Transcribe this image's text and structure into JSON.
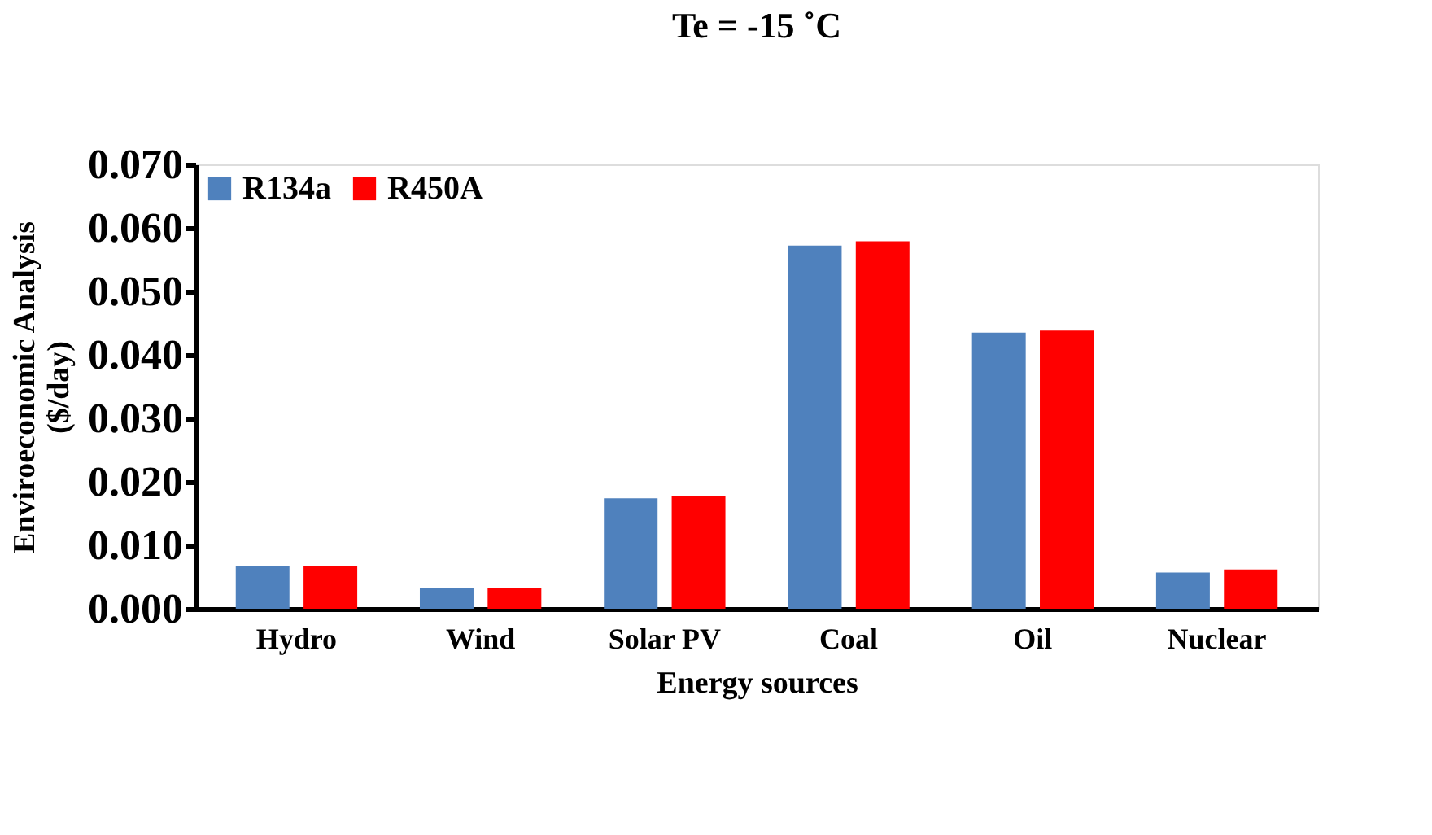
{
  "chart_data": {
    "type": "bar",
    "title": "Te = -15 ˚C",
    "xlabel": "Energy sources",
    "ylabel": "Enviroeconomic Analysis\n($/day)",
    "categories": [
      "Hydro",
      "Wind",
      "Solar PV",
      "Coal",
      "Oil",
      "Nuclear"
    ],
    "series": [
      {
        "name": "R134a",
        "color": "#4f81bd",
        "values": [
          0.0068,
          0.0033,
          0.0174,
          0.0572,
          0.0435,
          0.0057
        ]
      },
      {
        "name": "R450A",
        "color": "#ff0000",
        "values": [
          0.0068,
          0.0033,
          0.0178,
          0.0579,
          0.0438,
          0.0062
        ]
      }
    ],
    "ylim": [
      0,
      0.07
    ],
    "yticks": [
      {
        "value": 0,
        "label": "0.000"
      },
      {
        "value": 0.01,
        "label": "0.010"
      },
      {
        "value": 0.02,
        "label": "0.020"
      },
      {
        "value": 0.03,
        "label": "0.030"
      },
      {
        "value": 0.04,
        "label": "0.040"
      },
      {
        "value": 0.05,
        "label": "0.050"
      },
      {
        "value": 0.06,
        "label": "0.060"
      },
      {
        "value": 0.07,
        "label": "0.070"
      }
    ],
    "grid": false,
    "legend": "top left"
  }
}
